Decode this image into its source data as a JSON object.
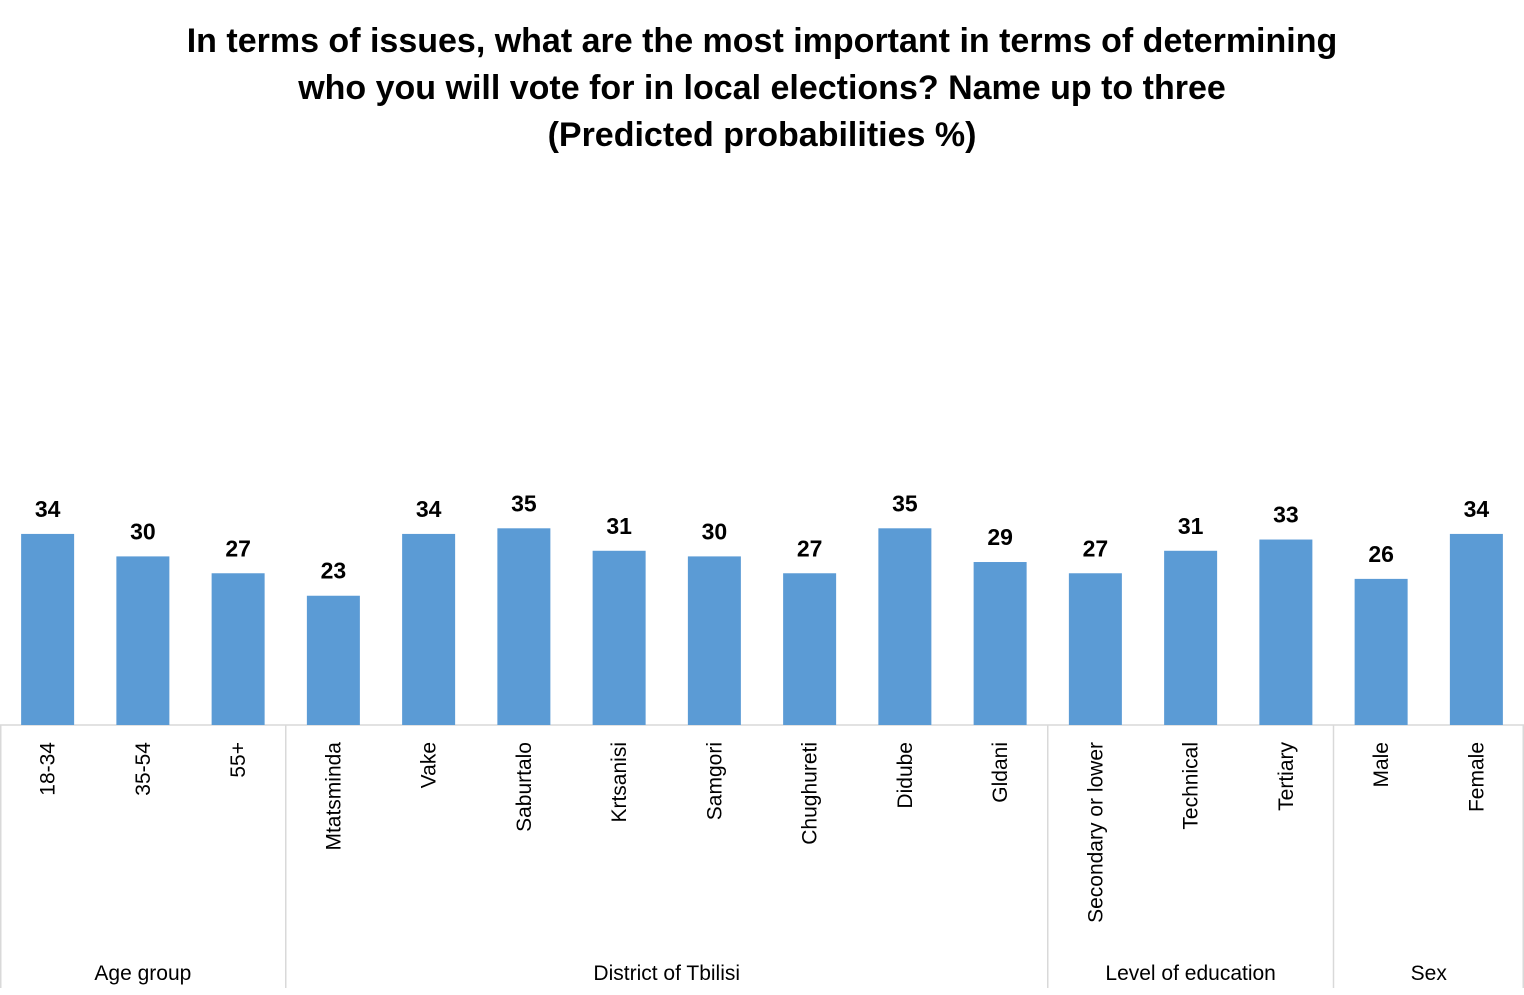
{
  "chart_data": {
    "type": "bar",
    "title_lines": [
      "In terms of issues, what are the most important in terms of determining",
      "who you will vote for in local elections? Name up to three",
      "(Predicted probabilities %)"
    ],
    "groups": [
      {
        "name": "Age group",
        "categories": [
          "18-34",
          "35-54",
          "55+"
        ],
        "values": [
          34,
          30,
          27
        ]
      },
      {
        "name": "District of Tbilisi",
        "categories": [
          "Mtatsminda",
          "Vake",
          "Saburtalo",
          "Krtsanisi",
          "Samgori",
          "Chughureti",
          "Didube",
          "Gldani"
        ],
        "values": [
          23,
          34,
          35,
          31,
          30,
          27,
          35,
          29
        ]
      },
      {
        "name": "Level of education",
        "categories": [
          "Secondary or lower",
          "Technical",
          "Tertiary"
        ],
        "values": [
          27,
          31,
          33
        ]
      },
      {
        "name": "Sex",
        "categories": [
          "Male",
          "Female"
        ],
        "values": [
          26,
          34
        ]
      }
    ],
    "ylim": [
      0,
      100
    ],
    "bar_color": "#5b9bd5",
    "grid_color": "#d9d9d9",
    "data_labels": true
  }
}
